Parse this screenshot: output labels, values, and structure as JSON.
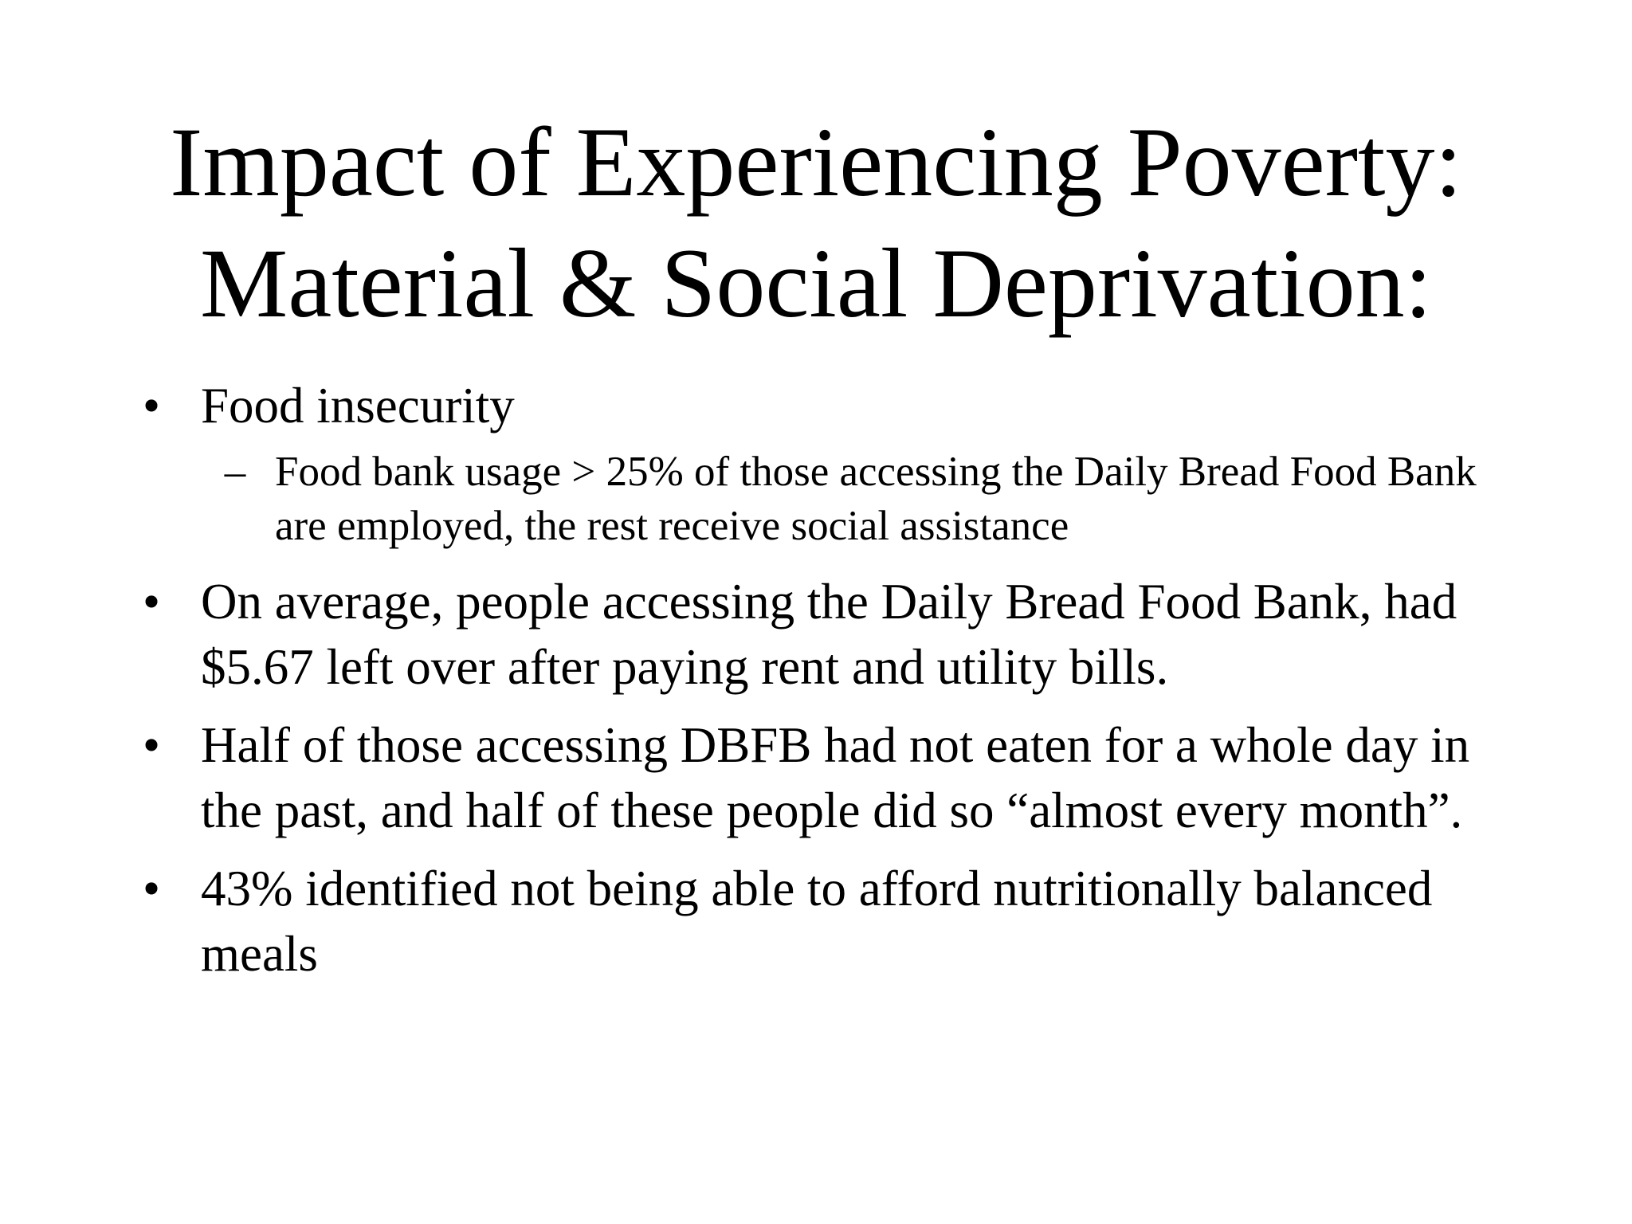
{
  "slide": {
    "title_line1": "Impact of Experiencing Poverty:",
    "title_line2": "Material & Social Deprivation:",
    "bullet_glyph": "•",
    "sub_bullet_glyph": "–",
    "bullets": [
      {
        "text": "Food insecurity"
      },
      {
        "text": "Food bank usage > 25% of those accessing the Daily Bread Food Bank are employed, the rest receive social assistance"
      },
      {
        "text": "On average, people accessing the Daily Bread Food Bank, had $5.67 left over after paying rent and utility bills."
      },
      {
        "text": "Half of those accessing DBFB had not eaten for a whole day in the past, and half of these people did so “almost every month”."
      },
      {
        "text": "43% identified not being able to afford nutritionally balanced meals"
      }
    ]
  }
}
